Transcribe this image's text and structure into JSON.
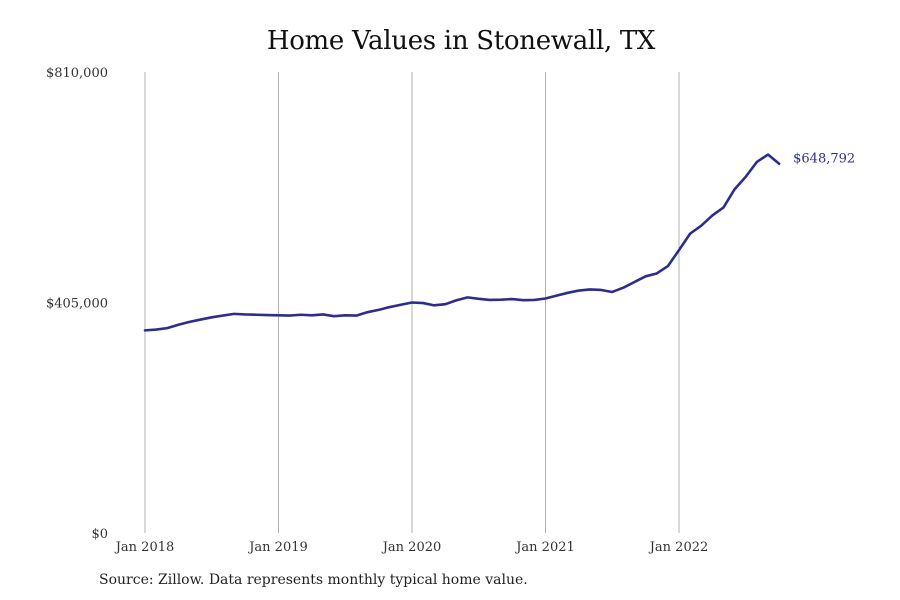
{
  "title": "Home Values in Stonewall, TX",
  "source_note": "Source: Zillow. Data represents monthly typical home value.",
  "colors": {
    "line": "#2e2d8c",
    "grid": "#b0b0b0",
    "text": "#333333"
  },
  "chart_data": {
    "type": "line",
    "title": "Home Values in Stonewall, TX",
    "xlabel": "",
    "ylabel": "",
    "ylim": [
      0,
      810000
    ],
    "y_ticks": [
      {
        "value": 0,
        "label": "$0"
      },
      {
        "value": 405000,
        "label": "$405,000"
      },
      {
        "value": 810000,
        "label": "$810,000"
      }
    ],
    "x_ticks": [
      {
        "value": "2018-01",
        "label": "Jan 2018"
      },
      {
        "value": "2019-01",
        "label": "Jan 2019"
      },
      {
        "value": "2020-01",
        "label": "Jan 2020"
      },
      {
        "value": "2021-01",
        "label": "Jan 2021"
      },
      {
        "value": "2022-01",
        "label": "Jan 2022"
      }
    ],
    "grid": "vertical lines at x ticks",
    "end_label": "$648,792",
    "series": [
      {
        "x": [
          "2018-01",
          "2018-02",
          "2018-03",
          "2018-04",
          "2018-05",
          "2018-06",
          "2018-07",
          "2018-08",
          "2018-09",
          "2018-10",
          "2018-11",
          "2018-12",
          "2019-01",
          "2019-02",
          "2019-03",
          "2019-04",
          "2019-05",
          "2019-06",
          "2019-07",
          "2019-08",
          "2019-09",
          "2019-10",
          "2019-11",
          "2019-12",
          "2020-01",
          "2020-02",
          "2020-03",
          "2020-04",
          "2020-05",
          "2020-06",
          "2020-07",
          "2020-08",
          "2020-09",
          "2020-10",
          "2020-11",
          "2020-12",
          "2021-01",
          "2021-02",
          "2021-03",
          "2021-04",
          "2021-05",
          "2021-06",
          "2021-07",
          "2021-08",
          "2021-09",
          "2021-10",
          "2021-11",
          "2021-12",
          "2022-01",
          "2022-02",
          "2022-03",
          "2022-04",
          "2022-05",
          "2022-06",
          "2022-07",
          "2022-08",
          "2022-09",
          "2022-10"
        ],
        "values": [
          356000,
          357500,
          360000,
          366000,
          371000,
          375000,
          379000,
          382000,
          385000,
          384000,
          383500,
          383000,
          382500,
          382000,
          383500,
          382500,
          384000,
          381000,
          382500,
          382000,
          388000,
          392000,
          397000,
          401000,
          405000,
          404000,
          400000,
          402000,
          409000,
          414000,
          411500,
          409500,
          410000,
          411000,
          409000,
          409500,
          412000,
          417000,
          422000,
          426000,
          428000,
          427000,
          423500,
          431000,
          441000,
          451000,
          456000,
          469000,
          497000,
          526000,
          540000,
          558000,
          572000,
          604000,
          626000,
          652000,
          665000,
          648792
        ]
      }
    ]
  }
}
